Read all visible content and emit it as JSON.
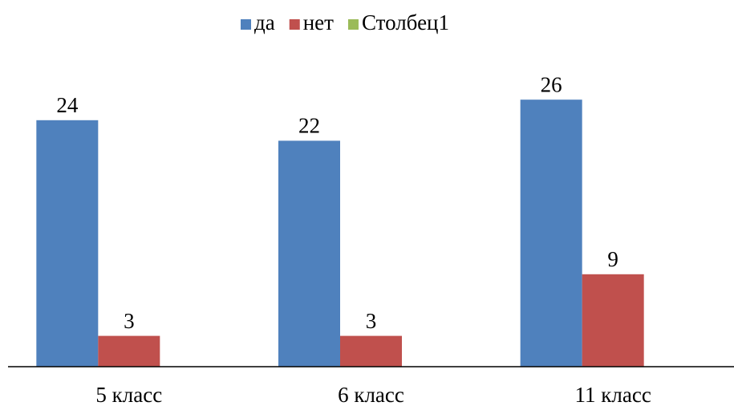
{
  "chart_data": {
    "type": "bar",
    "categories": [
      "5 класс",
      "6 класс",
      "11 класс"
    ],
    "series": [
      {
        "name": "да",
        "color": "#4f81bd",
        "values": [
          24,
          22,
          26
        ]
      },
      {
        "name": "нет",
        "color": "#c0504d",
        "values": [
          3,
          3,
          9
        ]
      },
      {
        "name": "Столбец1",
        "color": "#9bbb59",
        "values": [
          null,
          null,
          null
        ]
      }
    ],
    "ylim": [
      0,
      30
    ],
    "legend": "top"
  }
}
